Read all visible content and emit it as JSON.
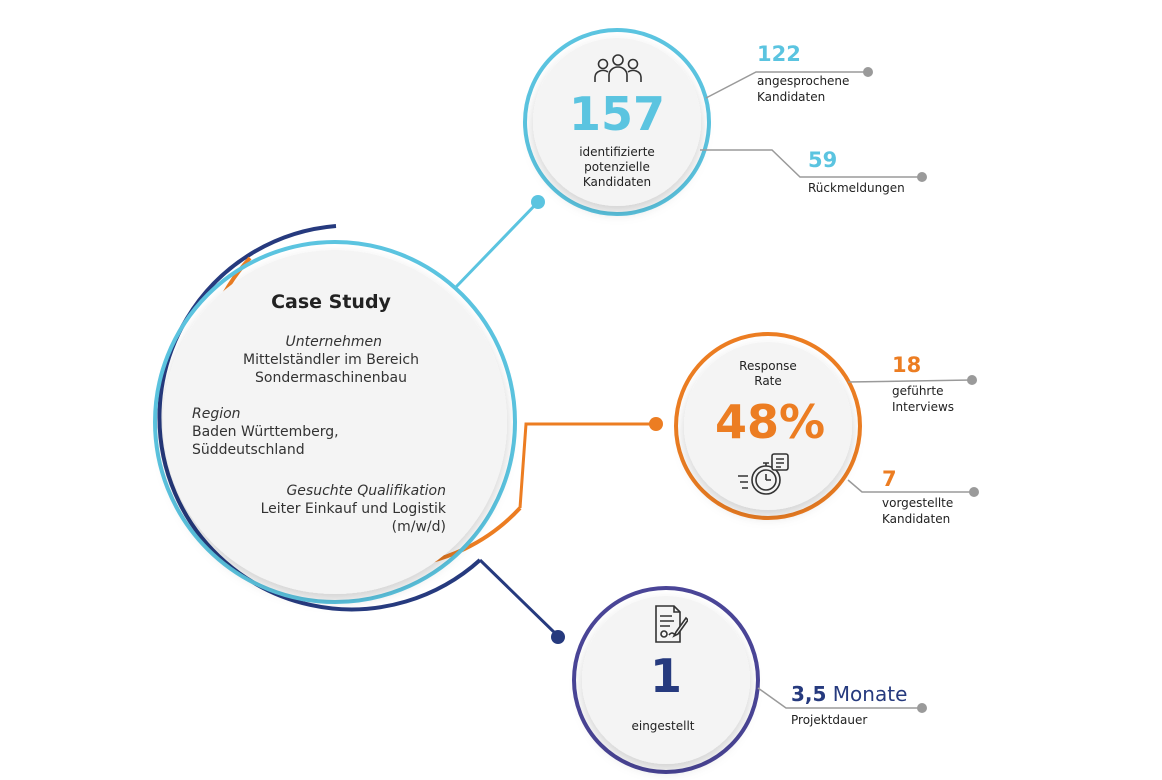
{
  "colors": {
    "cyan": "#5bc4e0",
    "orange": "#ec7d22",
    "navy": "#263a7e",
    "purple": "#4a4597",
    "grey": "#9a9a9a",
    "disc": "#f4f4f4",
    "text": "#222222"
  },
  "case_study": {
    "title": "Case Study",
    "company_label": "Unternehmen",
    "company_line1": "Mittelständler im Bereich",
    "company_line2": "Sondermaschinenbau",
    "region_label": "Region",
    "region_line1": "Baden Württemberg,",
    "region_line2": "Süddeutschland",
    "qualification_label": "Gesuchte Qualifikation",
    "qualification_line1": "Leiter Einkauf und Logistik",
    "qualification_line2": "(m/w/d)"
  },
  "candidates": {
    "icon": "team-people-icon",
    "value": "157",
    "caption_line1": "identifizierte",
    "caption_line2": "potenzielle",
    "caption_line3": "Kandidaten",
    "stat1_value": "122",
    "stat1_line1": "angesprochene",
    "stat1_line2": "Kandidaten",
    "stat2_value": "59",
    "stat2_line1": "Rückmeldungen"
  },
  "response": {
    "label_line1": "Response",
    "label_line2": "Rate",
    "value": "48%",
    "icon": "stopwatch-checklist-icon",
    "stat1_value": "18",
    "stat1_line1": "geführte",
    "stat1_line2": "Interviews",
    "stat2_value": "7",
    "stat2_line1": "vorgestellte",
    "stat2_line2": "Kandidaten"
  },
  "hired": {
    "icon": "signed-contract-icon",
    "value": "1",
    "caption": "eingestellt",
    "duration_value": "3,5",
    "duration_unit": "Monate",
    "duration_label": "Projektdauer"
  }
}
